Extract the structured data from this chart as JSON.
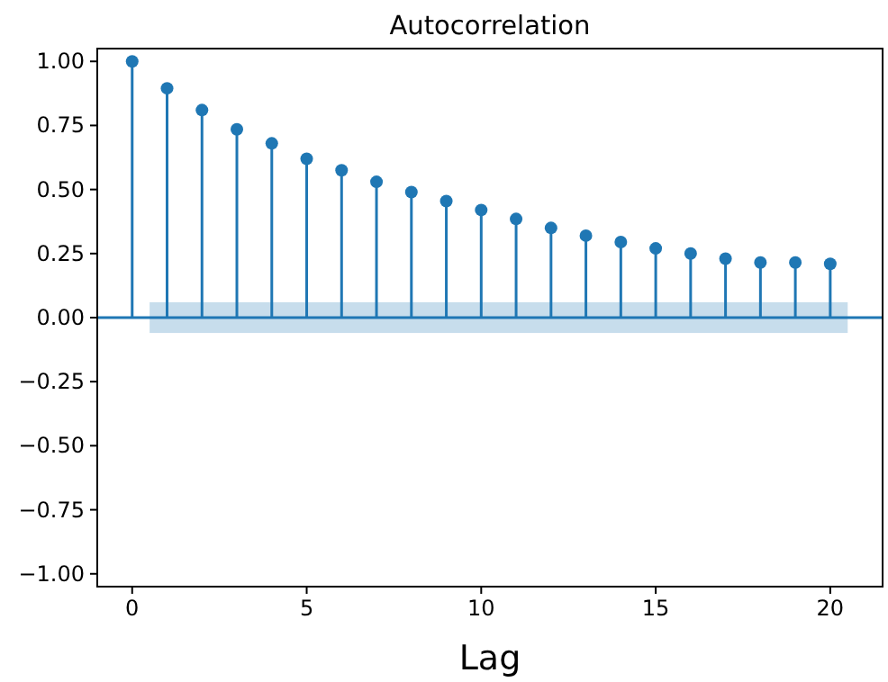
{
  "chart_data": {
    "type": "lollipop",
    "title": "Autocorrelation",
    "xlabel": "Lag",
    "x": [
      0,
      1,
      2,
      3,
      4,
      5,
      6,
      7,
      8,
      9,
      10,
      11,
      12,
      13,
      14,
      15,
      16,
      17,
      18,
      19,
      20
    ],
    "series": [
      {
        "color": "#1f77b4",
        "values": [
          1.0,
          0.895,
          0.81,
          0.735,
          0.68,
          0.62,
          0.575,
          0.53,
          0.49,
          0.455,
          0.42,
          0.385,
          0.35,
          0.32,
          0.295,
          0.27,
          0.25,
          0.23,
          0.215,
          0.215,
          0.21
        ]
      }
    ],
    "bands": [
      {
        "axis": "y",
        "from": -0.06,
        "to": 0.06,
        "color": "#1f77b4"
      }
    ],
    "ref_lines": [
      {
        "axis": "y",
        "value": 0,
        "color": "#1f77b4"
      }
    ],
    "marker": "circle",
    "xlim": [
      -1,
      21.5
    ],
    "xticks": [
      0,
      5,
      10,
      15,
      20
    ],
    "ylim": [
      -1.05,
      1.05
    ],
    "yticks": [
      {
        "value": -1,
        "label": "−1.00"
      },
      {
        "value": -0.75,
        "label": "−0.75"
      },
      {
        "value": -0.5,
        "label": "−0.50"
      },
      {
        "value": -0.25,
        "label": "−0.25"
      },
      {
        "value": 0,
        "label": "0.00"
      },
      {
        "value": 0.25,
        "label": "0.25"
      },
      {
        "value": 0.5,
        "label": "0.50"
      },
      {
        "value": 0.75,
        "label": "0.75"
      },
      {
        "value": 1,
        "label": "1.00"
      }
    ],
    "grid": false
  }
}
